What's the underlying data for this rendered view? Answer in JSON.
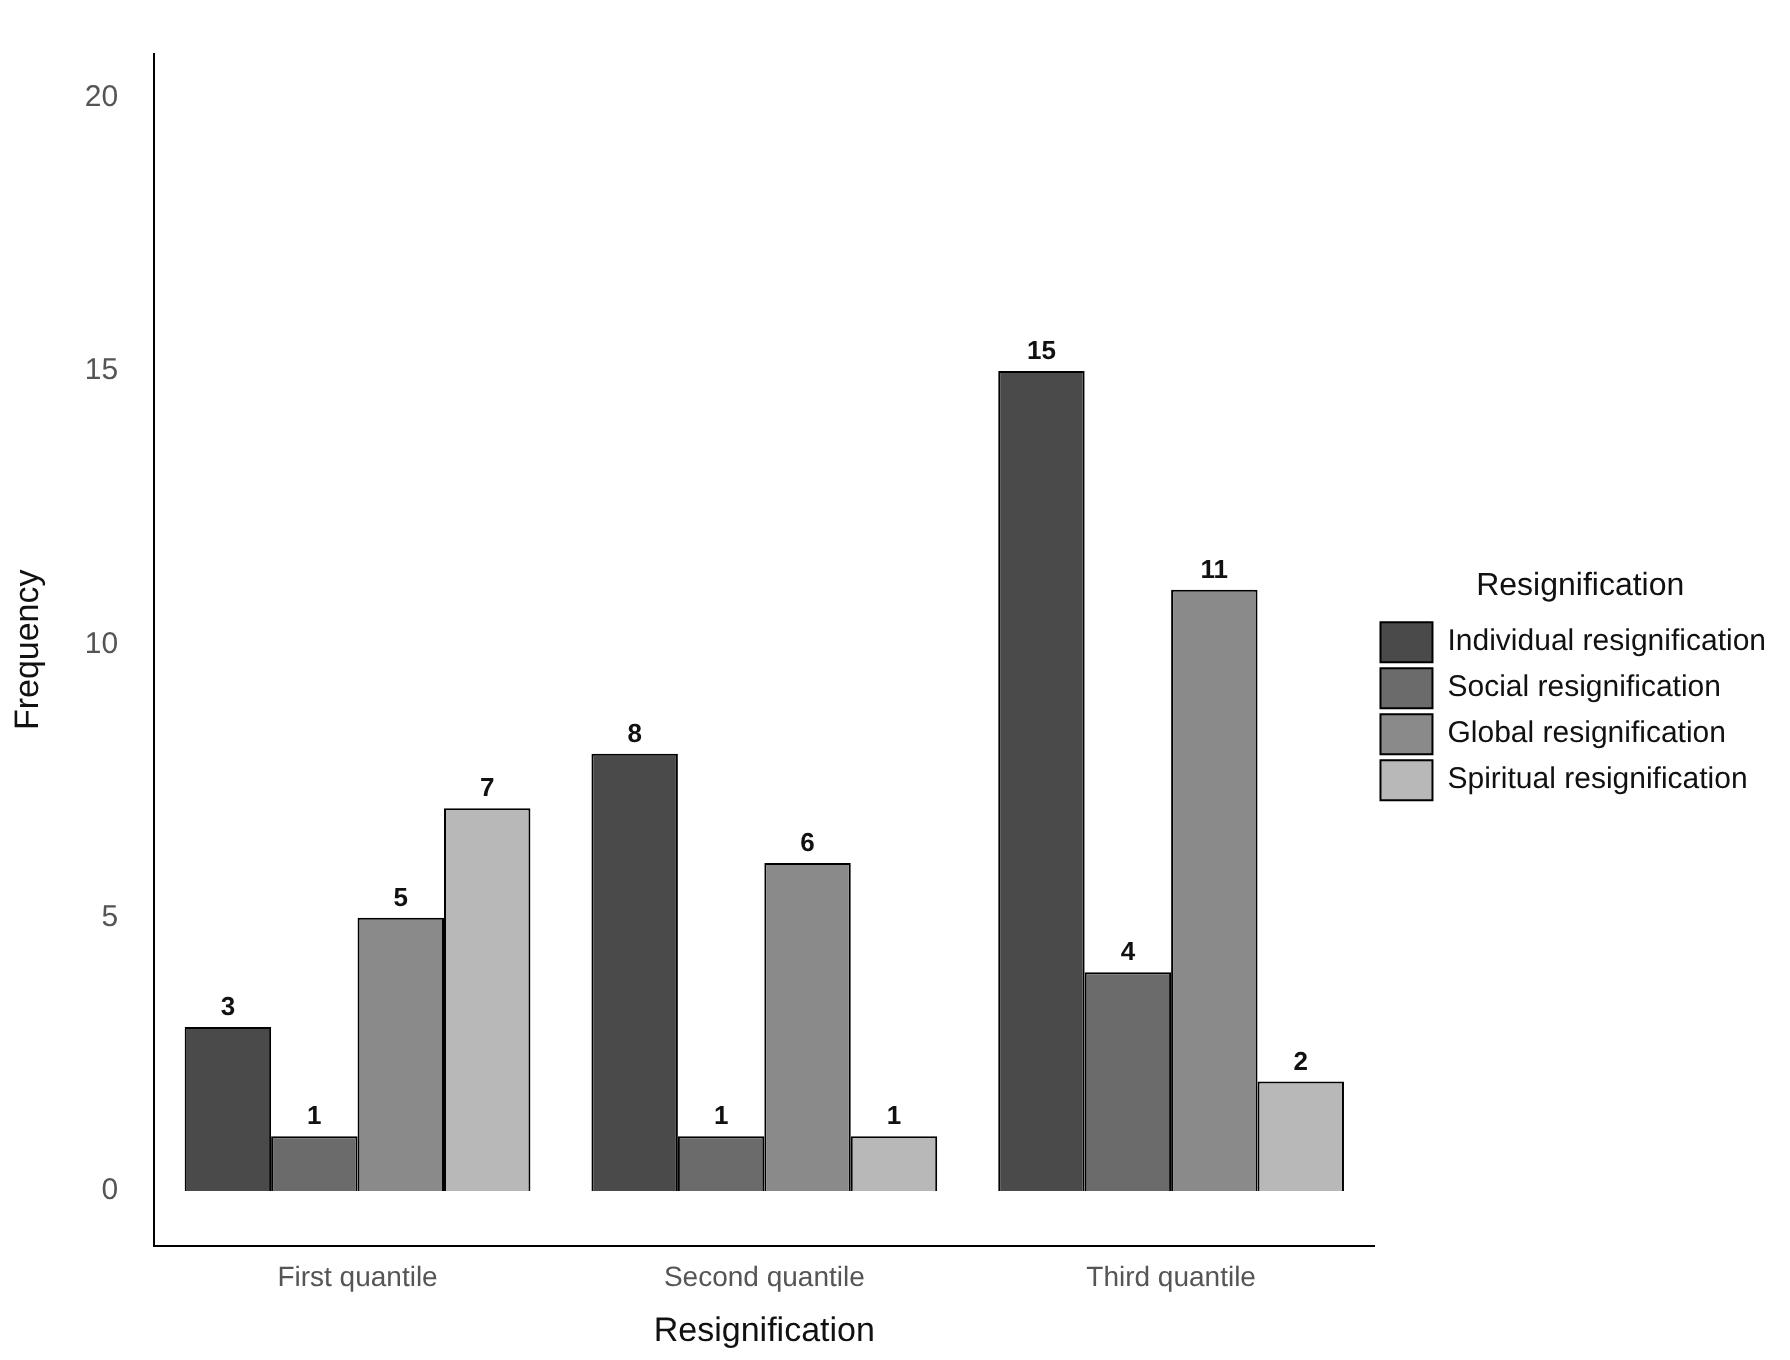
{
  "chart_data": {
    "type": "bar",
    "xlabel": "Resignification",
    "ylabel": "Frequency",
    "legend_title": "Resignification",
    "legend": "right",
    "grid": false,
    "data_labels": true,
    "categories": [
      "First quantile",
      "Second quantile",
      "Third quantile"
    ],
    "series": [
      {
        "name": "Individual resignification",
        "color": "#4a4a4a",
        "values": [
          3,
          8,
          15
        ]
      },
      {
        "name": "Social resignification",
        "color": "#6b6b6b",
        "values": [
          1,
          1,
          4
        ]
      },
      {
        "name": "Global resignification",
        "color": "#8a8a8a",
        "values": [
          5,
          6,
          11
        ]
      },
      {
        "name": "Spiritual resignification",
        "color": "#b8b8b8",
        "values": [
          7,
          1,
          2
        ]
      }
    ],
    "ylim": [
      -1,
      20.8
    ],
    "yticks": [
      0,
      5,
      10,
      15,
      20
    ]
  }
}
